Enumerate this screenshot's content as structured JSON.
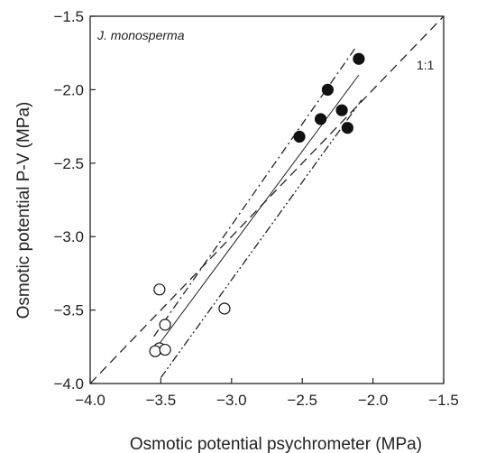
{
  "chart_data": {
    "type": "scatter",
    "annotation_species": "J. monosperma",
    "xlabel": "Osmotic potential psychrometer (MPa)",
    "ylabel": "Osmotic potential P-V (MPa)",
    "xlim": [
      -4.0,
      -1.5
    ],
    "ylim": [
      -4.0,
      -1.5
    ],
    "xticks": [
      "−4.0",
      "−3.5",
      "−3.0",
      "−2.5",
      "−2.0",
      "−1.5"
    ],
    "yticks": [
      "−4.0",
      "−3.5",
      "−3.0",
      "−2.5",
      "−2.0",
      "−1.5"
    ],
    "grid": false,
    "series": [
      {
        "marker": "filled-circle",
        "color": "#111111",
        "points": [
          {
            "x": -2.1,
            "y": -1.79
          },
          {
            "x": -2.32,
            "y": -2.0
          },
          {
            "x": -2.37,
            "y": -2.2
          },
          {
            "x": -2.22,
            "y": -2.14
          },
          {
            "x": -2.18,
            "y": -2.26
          },
          {
            "x": -2.52,
            "y": -2.32
          }
        ]
      },
      {
        "marker": "open-circle",
        "color": "#111111",
        "points": [
          {
            "x": -3.51,
            "y": -3.36
          },
          {
            "x": -3.47,
            "y": -3.6
          },
          {
            "x": -3.05,
            "y": -3.49
          },
          {
            "x": -3.51,
            "y": -3.76
          },
          {
            "x": -3.54,
            "y": -3.78
          },
          {
            "x": -3.47,
            "y": -3.77
          }
        ]
      }
    ],
    "lines": [
      {
        "role": "one-to-one",
        "style": "dashed",
        "label": "1:1",
        "x": [
          -4.0,
          -1.5
        ],
        "y": [
          -4.0,
          -1.5
        ]
      },
      {
        "role": "regression",
        "style": "solid",
        "x": [
          -3.55,
          -2.1
        ],
        "y": [
          -3.78,
          -1.9
        ]
      },
      {
        "role": "upper-confidence",
        "style": "dash-dot",
        "x": [
          -3.55,
          -2.12
        ],
        "y": [
          -3.68,
          -1.71
        ]
      },
      {
        "role": "lower-confidence",
        "style": "dash-dot-dot",
        "x": [
          -3.5,
          -2.08
        ],
        "y": [
          -3.96,
          -2.07
        ]
      }
    ]
  }
}
